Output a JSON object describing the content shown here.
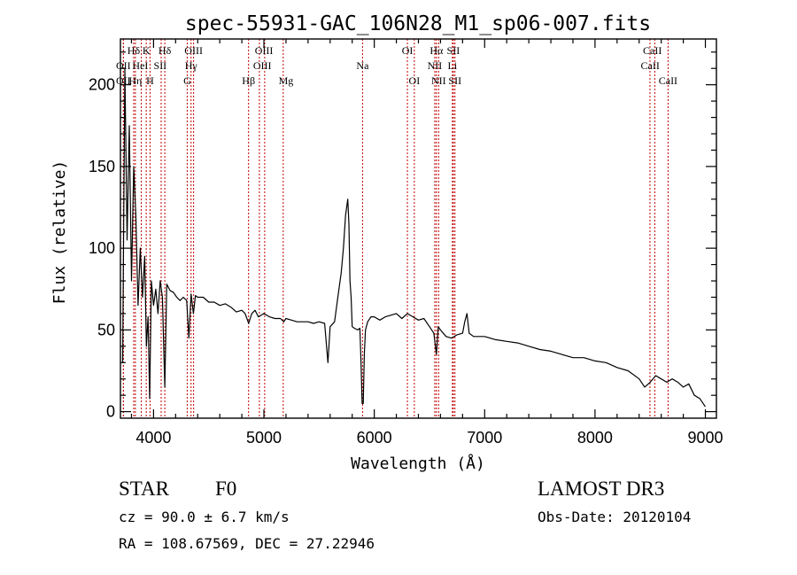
{
  "chart_data": {
    "type": "line",
    "title": "spec-55931-GAC_106N28_M1_sp06-007.fits",
    "xlabel": "Wavelength (Å)",
    "ylabel": "Flux (relative)",
    "xlim": [
      3700,
      9100
    ],
    "ylim": [
      -4,
      228
    ],
    "xticks": [
      4000,
      5000,
      6000,
      7000,
      8000,
      9000
    ],
    "xtick_labels": [
      "4000",
      "5000",
      "6000",
      "7000",
      "8000",
      "9000"
    ],
    "yticks": [
      0,
      50,
      100,
      150,
      200
    ],
    "ytick_labels": [
      "0",
      "50",
      "100",
      "150",
      "200"
    ],
    "grid": false,
    "line_color": "#000000",
    "marker_color": "#c00000",
    "series": [
      {
        "name": "flux",
        "x": [
          3720,
          3740,
          3760,
          3780,
          3800,
          3820,
          3840,
          3860,
          3880,
          3900,
          3920,
          3935,
          3950,
          3965,
          3980,
          4000,
          4020,
          4040,
          4060,
          4080,
          4102,
          4120,
          4150,
          4180,
          4210,
          4240,
          4270,
          4300,
          4320,
          4340,
          4361,
          4380,
          4400,
          4450,
          4500,
          4550,
          4600,
          4650,
          4700,
          4750,
          4800,
          4830,
          4862,
          4890,
          4920,
          4950,
          5000,
          5050,
          5100,
          5150,
          5180,
          5200,
          5250,
          5300,
          5350,
          5400,
          5450,
          5500,
          5550,
          5580,
          5600,
          5640,
          5670,
          5700,
          5720,
          5740,
          5760,
          5770,
          5780,
          5790,
          5800,
          5820,
          5850,
          5870,
          5880,
          5890,
          5900,
          5910,
          5920,
          5940,
          5970,
          6000,
          6050,
          6100,
          6150,
          6200,
          6250,
          6300,
          6350,
          6400,
          6450,
          6500,
          6540,
          6563,
          6580,
          6600,
          6650,
          6700,
          6750,
          6800,
          6820,
          6840,
          6860,
          6900,
          6950,
          7000,
          7100,
          7200,
          7300,
          7400,
          7500,
          7600,
          7700,
          7800,
          7900,
          8000,
          8100,
          8200,
          8300,
          8400,
          8450,
          8500,
          8550,
          8600,
          8650,
          8700,
          8750,
          8800,
          8850,
          8900,
          8950,
          9000
        ],
        "y": [
          30,
          210,
          105,
          175,
          80,
          150,
          120,
          65,
          100,
          70,
          95,
          40,
          58,
          8,
          80,
          65,
          75,
          60,
          80,
          70,
          15,
          78,
          74,
          73,
          70,
          68,
          70,
          68,
          45,
          72,
          60,
          71,
          70,
          70,
          67,
          67,
          65,
          66,
          64,
          61,
          62,
          60,
          54,
          60,
          62,
          58,
          60,
          58,
          57,
          57,
          55,
          57,
          56,
          55,
          55,
          55,
          54,
          55,
          54,
          30,
          52,
          55,
          70,
          85,
          100,
          120,
          130,
          115,
          80,
          70,
          52,
          51,
          50,
          51,
          30,
          5,
          5,
          35,
          50,
          55,
          58,
          58,
          56,
          58,
          59,
          60,
          57,
          60,
          58,
          56,
          57,
          52,
          48,
          35,
          52,
          50,
          46,
          45,
          47,
          48,
          55,
          60,
          48,
          46,
          46,
          46,
          44,
          43,
          42,
          40,
          38,
          37,
          35,
          33,
          33,
          31,
          30,
          27,
          25,
          20,
          15,
          18,
          22,
          20,
          18,
          20,
          18,
          15,
          17,
          10,
          8,
          3
        ]
      }
    ],
    "line_markers": [
      {
        "name": "Hδ",
        "wl": 3820,
        "label_x": 3820,
        "row": 1
      },
      {
        "name": "OII",
        "wl": 3727,
        "label_x": 3727,
        "row": 2
      },
      {
        "name": "OII",
        "wl": 3727,
        "label_x": 3727,
        "row": 3
      },
      {
        "name": "HeI",
        "wl": 3889,
        "label_x": 3880,
        "row": 2
      },
      {
        "name": "Hη",
        "wl": 3835,
        "label_x": 3835,
        "row": 3
      },
      {
        "name": "K",
        "wl": 3934,
        "label_x": 3934,
        "row": 1
      },
      {
        "name": "H",
        "wl": 3968,
        "label_x": 3968,
        "row": 3
      },
      {
        "name": "SII",
        "wl": 4069,
        "label_x": 4060,
        "row": 2
      },
      {
        "name": "Hδ",
        "wl": 4102,
        "label_x": 4102,
        "row": 1
      },
      {
        "name": "OIII",
        "wl": 4363,
        "label_x": 4363,
        "row": 1
      },
      {
        "name": "Hγ",
        "wl": 4340,
        "label_x": 4340,
        "row": 2
      },
      {
        "name": "G",
        "wl": 4305,
        "label_x": 4305,
        "row": 3
      },
      {
        "name": "Hβ",
        "wl": 4861,
        "label_x": 4861,
        "row": 3
      },
      {
        "name": "OIII",
        "wl": 4959,
        "label_x": 5000,
        "row": 1
      },
      {
        "name": "OIII",
        "wl": 5007,
        "label_x": 4985,
        "row": 2
      },
      {
        "name": "Mg",
        "wl": 5175,
        "label_x": 5200,
        "row": 3
      },
      {
        "name": "Na",
        "wl": 5894,
        "label_x": 5894,
        "row": 2
      },
      {
        "name": "OI",
        "wl": 6300,
        "label_x": 6300,
        "row": 1
      },
      {
        "name": "OI",
        "wl": 6363,
        "label_x": 6363,
        "row": 3
      },
      {
        "name": "Hα",
        "wl": 6563,
        "label_x": 6563,
        "row": 1
      },
      {
        "name": "NII",
        "wl": 6548,
        "label_x": 6548,
        "row": 2
      },
      {
        "name": "NII",
        "wl": 6583,
        "label_x": 6583,
        "row": 3
      },
      {
        "name": "SII",
        "wl": 6716,
        "label_x": 6716,
        "row": 1
      },
      {
        "name": "Li",
        "wl": 6708,
        "label_x": 6708,
        "row": 2
      },
      {
        "name": "SII",
        "wl": 6731,
        "label_x": 6731,
        "row": 3
      },
      {
        "name": "CaII",
        "wl": 8498,
        "label_x": 8520,
        "row": 1
      },
      {
        "name": "CaII",
        "wl": 8542,
        "label_x": 8500,
        "row": 2
      },
      {
        "name": "CaII",
        "wl": 8662,
        "label_x": 8662,
        "row": 3
      }
    ]
  },
  "info": {
    "class": "STAR",
    "subclass": "F0",
    "survey": "LAMOST DR3",
    "redshift": "cz = 90.0 ± 6.7 km/s",
    "obs_date": "Obs-Date: 20120104",
    "coords": "RA = 108.67569, DEC =  27.22946"
  }
}
